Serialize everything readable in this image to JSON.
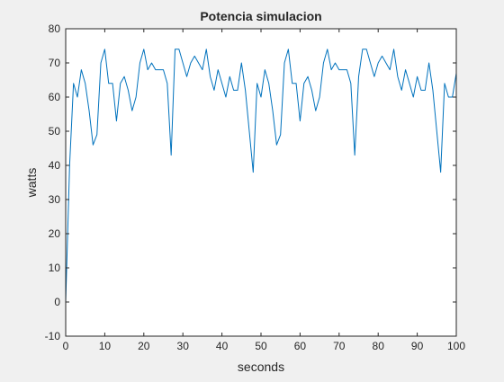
{
  "chart_data": {
    "type": "line",
    "title": "Potencia simulacion",
    "xlabel": "seconds",
    "ylabel": "watts",
    "xlim": [
      0,
      100
    ],
    "ylim": [
      -10,
      80
    ],
    "xticks": [
      0,
      10,
      20,
      30,
      40,
      50,
      60,
      70,
      80,
      90,
      100
    ],
    "yticks": [
      -10,
      0,
      10,
      20,
      30,
      40,
      50,
      60,
      70,
      80
    ],
    "grid": false,
    "series": [
      {
        "color": "#0072bd",
        "x": [
          0,
          1,
          2,
          3,
          4,
          5,
          6,
          7,
          8,
          9,
          10,
          11,
          12,
          13,
          14,
          15,
          16,
          17,
          18,
          19,
          20,
          21,
          22,
          23,
          24,
          25,
          26,
          27,
          28,
          29,
          30,
          31,
          32,
          33,
          34,
          35,
          36,
          37,
          38,
          39,
          40,
          41,
          42,
          43,
          44,
          45,
          46,
          47,
          48,
          49,
          50,
          51,
          52,
          53,
          54,
          55,
          56,
          57,
          58,
          59,
          60,
          61,
          62,
          63,
          64,
          65,
          66,
          67,
          68,
          69,
          70,
          71,
          72,
          73,
          74,
          75,
          76,
          77,
          78,
          79,
          80,
          81,
          82,
          83,
          84,
          85,
          86,
          87,
          88,
          89,
          90,
          91,
          92,
          93,
          94,
          95,
          96,
          97,
          98,
          99,
          100
        ],
        "y": [
          0,
          40,
          64,
          60,
          68,
          64,
          56,
          46,
          49,
          70,
          74,
          64,
          64,
          53,
          64,
          66,
          62,
          56,
          60,
          70,
          74,
          68,
          70,
          68,
          68,
          68,
          64,
          43,
          74,
          74,
          70,
          66,
          70,
          72,
          70,
          68,
          74,
          66,
          62,
          68,
          64,
          60,
          66,
          62,
          62,
          70,
          62,
          50,
          38,
          64,
          60,
          68,
          64,
          56,
          46,
          49,
          70,
          74,
          64,
          64,
          53,
          64,
          66,
          62,
          56,
          60,
          70,
          74,
          68,
          70,
          68,
          68,
          68,
          64,
          43,
          66,
          74,
          74,
          70,
          66,
          70,
          72,
          70,
          68,
          74,
          66,
          62,
          68,
          64,
          60,
          66,
          62,
          62,
          70,
          62,
          50,
          38,
          64,
          60,
          60,
          67
        ]
      }
    ]
  }
}
